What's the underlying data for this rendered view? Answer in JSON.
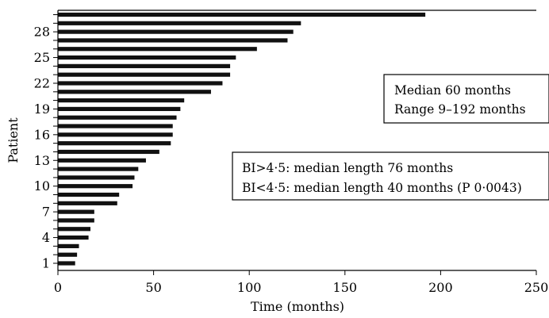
{
  "chart_data": {
    "type": "bar",
    "orientation": "horizontal",
    "title": "",
    "xlabel": "Time (months)",
    "ylabel": "Patient",
    "xlim": [
      0,
      250
    ],
    "x_ticks": [
      0,
      50,
      100,
      150,
      200,
      250
    ],
    "y_tick_labels": [
      "1",
      "4",
      "7",
      "10",
      "13",
      "16",
      "19",
      "22",
      "25",
      "28"
    ],
    "categories": [
      1,
      2,
      3,
      4,
      5,
      6,
      7,
      8,
      9,
      10,
      11,
      12,
      13,
      14,
      15,
      16,
      17,
      18,
      19,
      20,
      21,
      22,
      23,
      24,
      25,
      26,
      27,
      28,
      29,
      30
    ],
    "values": [
      9,
      10,
      11,
      16,
      17,
      19,
      19,
      31,
      32,
      39,
      40,
      42,
      46,
      53,
      59,
      60,
      60,
      62,
      64,
      66,
      80,
      86,
      90,
      90,
      93,
      104,
      120,
      123,
      127,
      192
    ],
    "bar_color": "#111111",
    "grid": false,
    "annotations": [
      {
        "id": "box1",
        "lines": [
          "Median 60 months",
          "Range 9–192 months"
        ]
      },
      {
        "id": "box2",
        "lines": [
          "BI>4·5: median length 76 months",
          "BI<4·5: median length 40 months (P 0·0043)"
        ]
      }
    ]
  }
}
